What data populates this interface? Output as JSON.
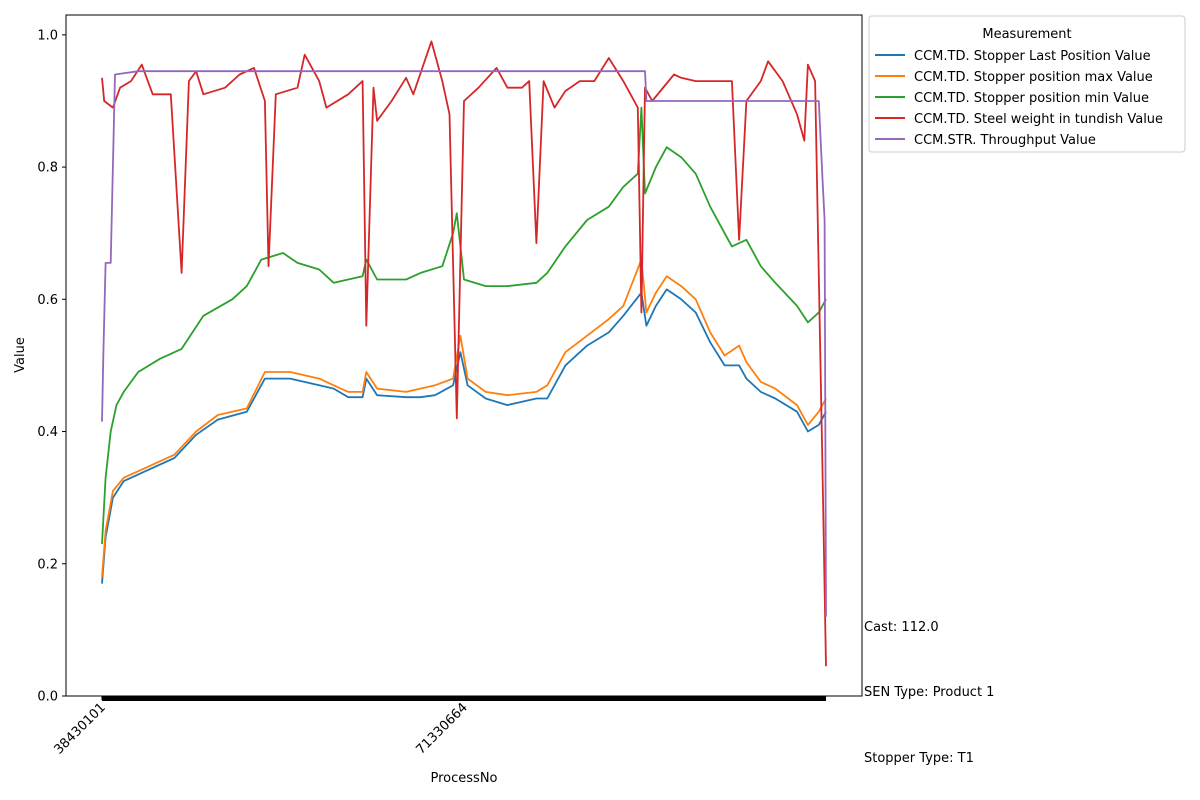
{
  "chart_data": {
    "type": "line",
    "title": "",
    "xlabel": "ProcessNo",
    "ylabel": "Value",
    "x_tick_labels": [
      "38430101",
      "71330664"
    ],
    "x_tick_positions": [
      0,
      0.5
    ],
    "yticks": [
      "0.0",
      "0.2",
      "0.4",
      "0.6",
      "0.8",
      "1.0"
    ],
    "ylim": [
      0.0,
      1.03
    ],
    "grid": false,
    "legend": {
      "title": "Measurement",
      "placement": "outside-top-right"
    },
    "annotations": [
      "Cast: 112.0",
      "SEN Type: Product 1",
      "Stopper Type: T1"
    ],
    "series": [
      {
        "name": "CCM.TD. Stopper Last Position Value",
        "color": "#1f77b4",
        "points": [
          [
            0.0,
            0.17
          ],
          [
            0.005,
            0.24
          ],
          [
            0.015,
            0.3
          ],
          [
            0.03,
            0.325
          ],
          [
            0.06,
            0.34
          ],
          [
            0.1,
            0.36
          ],
          [
            0.13,
            0.395
          ],
          [
            0.16,
            0.418
          ],
          [
            0.2,
            0.43
          ],
          [
            0.225,
            0.48
          ],
          [
            0.26,
            0.48
          ],
          [
            0.3,
            0.47
          ],
          [
            0.32,
            0.465
          ],
          [
            0.34,
            0.452
          ],
          [
            0.36,
            0.452
          ],
          [
            0.365,
            0.48
          ],
          [
            0.38,
            0.455
          ],
          [
            0.42,
            0.452
          ],
          [
            0.44,
            0.452
          ],
          [
            0.46,
            0.455
          ],
          [
            0.485,
            0.47
          ],
          [
            0.495,
            0.52
          ],
          [
            0.505,
            0.47
          ],
          [
            0.53,
            0.45
          ],
          [
            0.56,
            0.44
          ],
          [
            0.6,
            0.45
          ],
          [
            0.615,
            0.45
          ],
          [
            0.64,
            0.5
          ],
          [
            0.67,
            0.53
          ],
          [
            0.7,
            0.55
          ],
          [
            0.72,
            0.575
          ],
          [
            0.745,
            0.61
          ],
          [
            0.752,
            0.56
          ],
          [
            0.765,
            0.59
          ],
          [
            0.78,
            0.615
          ],
          [
            0.8,
            0.6
          ],
          [
            0.82,
            0.58
          ],
          [
            0.84,
            0.535
          ],
          [
            0.86,
            0.5
          ],
          [
            0.88,
            0.5
          ],
          [
            0.89,
            0.48
          ],
          [
            0.91,
            0.46
          ],
          [
            0.93,
            0.45
          ],
          [
            0.96,
            0.43
          ],
          [
            0.975,
            0.4
          ],
          [
            0.99,
            0.41
          ],
          [
            1.0,
            0.43
          ]
        ]
      },
      {
        "name": "CCM.TD. Stopper position max Value",
        "color": "#ff7f0e",
        "points": [
          [
            0.0,
            0.18
          ],
          [
            0.005,
            0.25
          ],
          [
            0.015,
            0.31
          ],
          [
            0.03,
            0.33
          ],
          [
            0.06,
            0.345
          ],
          [
            0.1,
            0.365
          ],
          [
            0.13,
            0.4
          ],
          [
            0.16,
            0.425
          ],
          [
            0.2,
            0.435
          ],
          [
            0.225,
            0.49
          ],
          [
            0.26,
            0.49
          ],
          [
            0.3,
            0.48
          ],
          [
            0.32,
            0.47
          ],
          [
            0.34,
            0.46
          ],
          [
            0.36,
            0.46
          ],
          [
            0.365,
            0.49
          ],
          [
            0.38,
            0.465
          ],
          [
            0.42,
            0.46
          ],
          [
            0.44,
            0.465
          ],
          [
            0.46,
            0.47
          ],
          [
            0.485,
            0.48
          ],
          [
            0.495,
            0.545
          ],
          [
            0.505,
            0.48
          ],
          [
            0.53,
            0.46
          ],
          [
            0.56,
            0.455
          ],
          [
            0.6,
            0.46
          ],
          [
            0.615,
            0.47
          ],
          [
            0.64,
            0.52
          ],
          [
            0.67,
            0.545
          ],
          [
            0.7,
            0.57
          ],
          [
            0.72,
            0.59
          ],
          [
            0.745,
            0.66
          ],
          [
            0.752,
            0.58
          ],
          [
            0.765,
            0.61
          ],
          [
            0.78,
            0.635
          ],
          [
            0.8,
            0.62
          ],
          [
            0.82,
            0.6
          ],
          [
            0.84,
            0.55
          ],
          [
            0.86,
            0.515
          ],
          [
            0.88,
            0.53
          ],
          [
            0.89,
            0.505
          ],
          [
            0.91,
            0.475
          ],
          [
            0.93,
            0.465
          ],
          [
            0.96,
            0.44
          ],
          [
            0.975,
            0.41
          ],
          [
            0.99,
            0.43
          ],
          [
            1.0,
            0.45
          ]
        ]
      },
      {
        "name": "CCM.TD. Stopper position min Value",
        "color": "#2ca02c",
        "points": [
          [
            0.0,
            0.23
          ],
          [
            0.005,
            0.33
          ],
          [
            0.012,
            0.4
          ],
          [
            0.02,
            0.44
          ],
          [
            0.03,
            0.46
          ],
          [
            0.05,
            0.49
          ],
          [
            0.08,
            0.51
          ],
          [
            0.11,
            0.525
          ],
          [
            0.14,
            0.575
          ],
          [
            0.18,
            0.6
          ],
          [
            0.2,
            0.62
          ],
          [
            0.22,
            0.66
          ],
          [
            0.25,
            0.67
          ],
          [
            0.27,
            0.655
          ],
          [
            0.3,
            0.645
          ],
          [
            0.32,
            0.625
          ],
          [
            0.34,
            0.63
          ],
          [
            0.36,
            0.635
          ],
          [
            0.365,
            0.66
          ],
          [
            0.38,
            0.63
          ],
          [
            0.42,
            0.63
          ],
          [
            0.44,
            0.64
          ],
          [
            0.47,
            0.65
          ],
          [
            0.485,
            0.7
          ],
          [
            0.49,
            0.73
          ],
          [
            0.5,
            0.63
          ],
          [
            0.53,
            0.62
          ],
          [
            0.56,
            0.62
          ],
          [
            0.6,
            0.625
          ],
          [
            0.615,
            0.64
          ],
          [
            0.64,
            0.68
          ],
          [
            0.67,
            0.72
          ],
          [
            0.7,
            0.74
          ],
          [
            0.72,
            0.77
          ],
          [
            0.74,
            0.79
          ],
          [
            0.745,
            0.89
          ],
          [
            0.75,
            0.76
          ],
          [
            0.765,
            0.8
          ],
          [
            0.78,
            0.83
          ],
          [
            0.8,
            0.815
          ],
          [
            0.82,
            0.79
          ],
          [
            0.84,
            0.74
          ],
          [
            0.86,
            0.7
          ],
          [
            0.87,
            0.68
          ],
          [
            0.89,
            0.69
          ],
          [
            0.91,
            0.65
          ],
          [
            0.93,
            0.625
          ],
          [
            0.96,
            0.59
          ],
          [
            0.975,
            0.565
          ],
          [
            0.99,
            0.58
          ],
          [
            1.0,
            0.6
          ]
        ]
      },
      {
        "name": "CCM.TD. Steel weight in tundish Value",
        "color": "#d62728",
        "points": [
          [
            0.0,
            0.935
          ],
          [
            0.003,
            0.9
          ],
          [
            0.015,
            0.89
          ],
          [
            0.025,
            0.92
          ],
          [
            0.04,
            0.93
          ],
          [
            0.055,
            0.955
          ],
          [
            0.07,
            0.91
          ],
          [
            0.095,
            0.91
          ],
          [
            0.11,
            0.64
          ],
          [
            0.12,
            0.93
          ],
          [
            0.13,
            0.945
          ],
          [
            0.14,
            0.91
          ],
          [
            0.17,
            0.92
          ],
          [
            0.19,
            0.94
          ],
          [
            0.21,
            0.95
          ],
          [
            0.225,
            0.9
          ],
          [
            0.23,
            0.65
          ],
          [
            0.24,
            0.91
          ],
          [
            0.27,
            0.92
          ],
          [
            0.28,
            0.97
          ],
          [
            0.3,
            0.93
          ],
          [
            0.31,
            0.89
          ],
          [
            0.34,
            0.91
          ],
          [
            0.36,
            0.93
          ],
          [
            0.365,
            0.56
          ],
          [
            0.375,
            0.92
          ],
          [
            0.38,
            0.87
          ],
          [
            0.4,
            0.9
          ],
          [
            0.42,
            0.935
          ],
          [
            0.43,
            0.91
          ],
          [
            0.455,
            0.99
          ],
          [
            0.47,
            0.93
          ],
          [
            0.48,
            0.88
          ],
          [
            0.49,
            0.42
          ],
          [
            0.5,
            0.9
          ],
          [
            0.52,
            0.92
          ],
          [
            0.545,
            0.95
          ],
          [
            0.56,
            0.92
          ],
          [
            0.58,
            0.92
          ],
          [
            0.59,
            0.93
          ],
          [
            0.6,
            0.685
          ],
          [
            0.61,
            0.93
          ],
          [
            0.625,
            0.89
          ],
          [
            0.64,
            0.915
          ],
          [
            0.66,
            0.93
          ],
          [
            0.68,
            0.93
          ],
          [
            0.7,
            0.965
          ],
          [
            0.72,
            0.93
          ],
          [
            0.74,
            0.89
          ],
          [
            0.745,
            0.58
          ],
          [
            0.75,
            0.92
          ],
          [
            0.76,
            0.9
          ],
          [
            0.79,
            0.94
          ],
          [
            0.8,
            0.935
          ],
          [
            0.82,
            0.93
          ],
          [
            0.87,
            0.93
          ],
          [
            0.88,
            0.69
          ],
          [
            0.89,
            0.9
          ],
          [
            0.91,
            0.93
          ],
          [
            0.92,
            0.96
          ],
          [
            0.94,
            0.93
          ],
          [
            0.96,
            0.88
          ],
          [
            0.97,
            0.84
          ],
          [
            0.975,
            0.955
          ],
          [
            0.985,
            0.93
          ],
          [
            0.995,
            0.35
          ],
          [
            1.0,
            0.045
          ]
        ]
      },
      {
        "name": "CCM.STR. Throughput Value",
        "color": "#9467bd",
        "points": [
          [
            0.0,
            0.415
          ],
          [
            0.002,
            0.52
          ],
          [
            0.005,
            0.655
          ],
          [
            0.012,
            0.655
          ],
          [
            0.018,
            0.94
          ],
          [
            0.05,
            0.945
          ],
          [
            0.3,
            0.945
          ],
          [
            0.5,
            0.945
          ],
          [
            0.75,
            0.945
          ],
          [
            0.752,
            0.9
          ],
          [
            0.99,
            0.9
          ],
          [
            0.995,
            0.785
          ],
          [
            0.998,
            0.72
          ],
          [
            1.0,
            0.12
          ]
        ]
      }
    ]
  }
}
